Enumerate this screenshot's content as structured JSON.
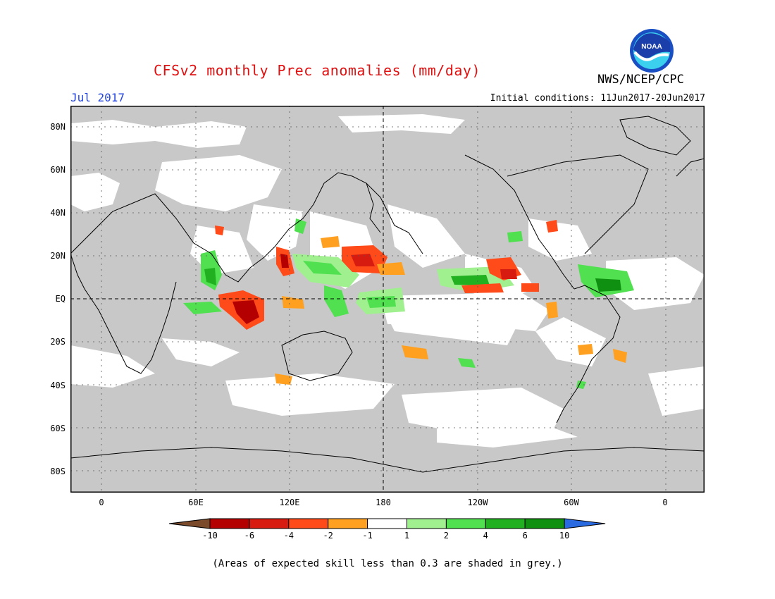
{
  "title": "CFSv2 monthly Prec anomalies (mm/day)",
  "agency": "NWS/NCEP/CPC",
  "logo_text": "NOAA",
  "valid_month": "Jul 2017",
  "initial_conditions": "Initial conditions: 11Jun2017-20Jun2017",
  "lat_labels": [
    "80N",
    "60N",
    "40N",
    "20N",
    "EQ",
    "20S",
    "40S",
    "60S",
    "80S"
  ],
  "lon_labels": [
    "0",
    "60E",
    "120E",
    "180",
    "120W",
    "60W",
    "0"
  ],
  "colorbar": {
    "labels": [
      "-10",
      "-6",
      "-4",
      "-2",
      "-1",
      "1",
      "2",
      "4",
      "6",
      "10"
    ],
    "colors": [
      "#7a4a2a",
      "#b40000",
      "#d81b10",
      "#ff4a1a",
      "#ffa020",
      "#ffffff",
      "#a0f090",
      "#50e050",
      "#20b020",
      "#109010",
      "#2a6ae0"
    ]
  },
  "colors": {
    "skill_mask_grey": "#c8c8c8",
    "coast": "#000000"
  },
  "footnote": "(Areas of expected skill less than 0.3 are shaded in grey.)"
}
